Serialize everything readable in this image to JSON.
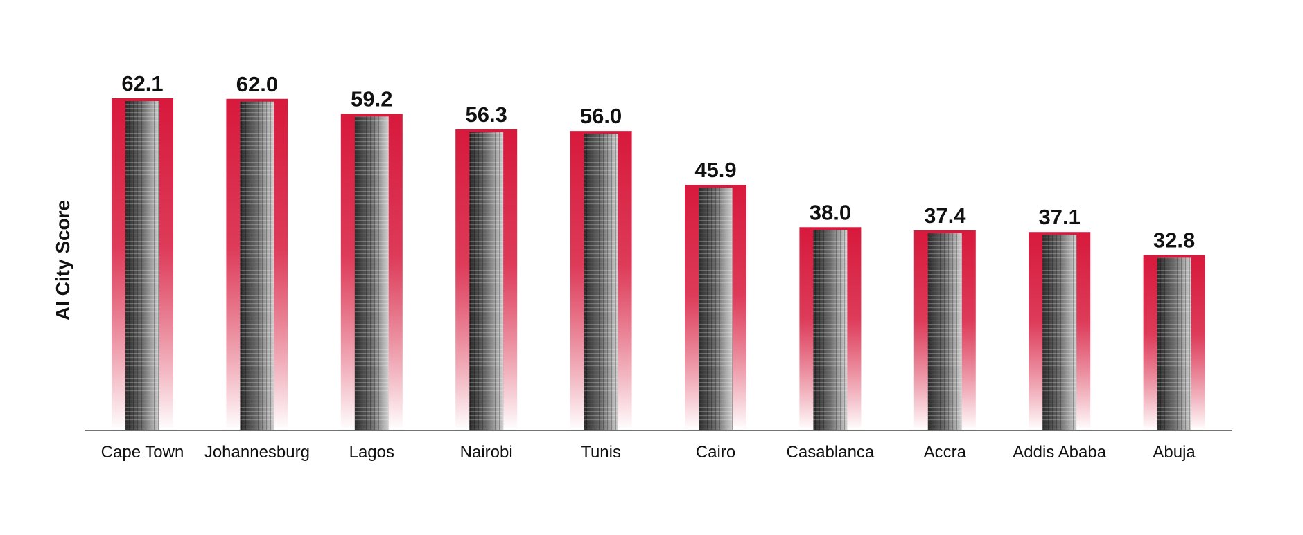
{
  "chart_data": {
    "type": "bar",
    "ylabel": "AI City Score",
    "categories": [
      "Cape Town",
      "Johannesburg",
      "Lagos",
      "Nairobi",
      "Tunis",
      "Cairo",
      "Casablanca",
      "Accra",
      "Addis Ababa",
      "Abuja"
    ],
    "values": [
      62.1,
      62.0,
      59.2,
      56.3,
      56.0,
      45.9,
      38.0,
      37.4,
      37.1,
      32.8
    ],
    "value_labels": [
      "62.1",
      "62.0",
      "59.2",
      "56.3",
      "56.0",
      "45.9",
      "38.0",
      "37.4",
      "37.1",
      "32.8"
    ],
    "ylim": [
      0,
      62.1
    ],
    "grid": false,
    "legend": "none",
    "bar_color": "#d7193c",
    "bar_fade_color": "#ffffff",
    "building_color": "#555555"
  }
}
